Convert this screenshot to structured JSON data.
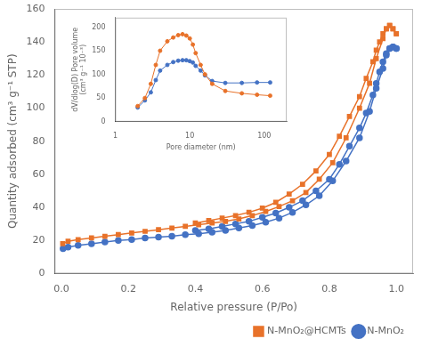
{
  "chart_data": [
    {
      "type": "line",
      "xlabel": "Relative pressure (P/Po)",
      "ylabel": "Quantity adsorbed (cm³ g⁻¹ STP)",
      "xlim": [
        -0.02,
        1.05
      ],
      "ylim": [
        0,
        160
      ],
      "xticks": [
        {
          "value": 0,
          "label": "0.0"
        },
        0.2,
        0.4,
        0.6,
        0.8,
        {
          "value": 1,
          "label": "1.0"
        }
      ],
      "yticks": [
        0,
        20,
        40,
        60,
        80,
        100,
        120,
        140,
        160
      ],
      "grid": false,
      "legend": "lower right",
      "series": [
        {
          "name": "N-MnO₂@HCMTs",
          "color": "#E8722A",
          "marker": "square",
          "x": [
            0.004,
            0.02,
            0.05,
            0.09,
            0.13,
            0.17,
            0.21,
            0.25,
            0.29,
            0.33,
            0.37,
            0.41,
            0.45,
            0.49,
            0.53,
            0.57,
            0.61,
            0.65,
            0.69,
            0.73,
            0.77,
            0.81,
            0.85,
            0.89,
            0.92,
            0.94,
            0.96,
            0.97,
            0.98,
            0.99,
            1.0
          ],
          "values": [
            18.0,
            19.5,
            20.5,
            21.5,
            22.5,
            23.5,
            24.5,
            25.5,
            26.5,
            27.5,
            28.5,
            29.5,
            30.5,
            31.5,
            33.0,
            35.0,
            37.5,
            40.5,
            44.0,
            49.0,
            57.0,
            67.0,
            82.0,
            100.0,
            115.0,
            130.0,
            142.0,
            148.0,
            150.0,
            148.0,
            145.0
          ]
        },
        {
          "color": "#E8722A",
          "marker": "square",
          "x": [
            1.0,
            0.99,
            0.98,
            0.97,
            0.96,
            0.95,
            0.94,
            0.93,
            0.91,
            0.89,
            0.86,
            0.83,
            0.8,
            0.76,
            0.72,
            0.68,
            0.64,
            0.6,
            0.56,
            0.52,
            0.48,
            0.44,
            0.4
          ],
          "values": [
            145.0,
            148.0,
            150.0,
            148.0,
            145.0,
            140.0,
            135.0,
            128.0,
            118.0,
            107.0,
            95.0,
            83.0,
            72.0,
            62.0,
            54.0,
            48.0,
            43.0,
            39.5,
            37.0,
            35.0,
            33.5,
            32.0,
            30.5
          ]
        },
        {
          "name": "N-MnO₂",
          "color": "#4472C4",
          "marker": "circle",
          "x": [
            0.005,
            0.02,
            0.05,
            0.09,
            0.13,
            0.17,
            0.21,
            0.25,
            0.29,
            0.33,
            0.37,
            0.41,
            0.45,
            0.49,
            0.53,
            0.57,
            0.61,
            0.65,
            0.69,
            0.73,
            0.77,
            0.81,
            0.85,
            0.89,
            0.92,
            0.94,
            0.96,
            0.97,
            0.98,
            0.99,
            1.0
          ],
          "values": [
            15.0,
            16.0,
            17.0,
            18.0,
            19.0,
            20.0,
            20.5,
            21.5,
            22.0,
            22.5,
            23.5,
            24.0,
            25.0,
            26.0,
            27.5,
            29.0,
            31.0,
            33.5,
            37.0,
            41.5,
            47.0,
            56.0,
            68.0,
            82.0,
            98.0,
            112.0,
            124.0,
            132.0,
            136.0,
            137.0,
            136.0
          ]
        },
        {
          "color": "#4472C4",
          "marker": "circle",
          "x": [
            1.0,
            0.99,
            0.98,
            0.97,
            0.96,
            0.95,
            0.94,
            0.93,
            0.91,
            0.89,
            0.86,
            0.83,
            0.8,
            0.76,
            0.72,
            0.68,
            0.64,
            0.6,
            0.56,
            0.52,
            0.48,
            0.44,
            0.4
          ],
          "values": [
            136.0,
            137.0,
            136.0,
            133.0,
            128.0,
            122.0,
            115.0,
            108.0,
            97.0,
            88.0,
            77.0,
            66.0,
            57.0,
            50.0,
            44.0,
            40.0,
            36.5,
            34.0,
            31.5,
            30.0,
            28.5,
            27.0,
            26.0
          ]
        }
      ]
    },
    {
      "type": "line",
      "log": "x",
      "xlabel": "Pore diameter (nm)",
      "ylabel": [
        "dV/dlog(D) Pore volume",
        "(cm³ g⁻¹ 10⁻³)"
      ],
      "xlim": [
        1,
        200
      ],
      "ylim": [
        0,
        220
      ],
      "xticks": [
        1,
        10,
        100
      ],
      "yticks": [
        0,
        50,
        100,
        150,
        200
      ],
      "grid": false,
      "series": [
        {
          "color": "#E8722A",
          "marker": "circle",
          "x": [
            2.0,
            2.5,
            3.0,
            3.5,
            4.0,
            5.0,
            6.0,
            7.0,
            8.0,
            9.0,
            10.0,
            11.0,
            12.0,
            14.0,
            16.0,
            20.0,
            30.0,
            50.0,
            80.0,
            120.0
          ],
          "values": [
            33.0,
            50.0,
            80.0,
            120.0,
            150.0,
            170.0,
            178.0,
            183.0,
            185.0,
            182.0,
            176.0,
            163.0,
            145.0,
            120.0,
            100.0,
            80.0,
            65.0,
            60.0,
            57.0,
            55.0
          ]
        },
        {
          "color": "#4472C4",
          "marker": "circle",
          "x": [
            2.0,
            2.5,
            3.0,
            3.5,
            4.0,
            5.0,
            6.0,
            7.0,
            8.0,
            9.0,
            10.0,
            11.0,
            12.0,
            14.0,
            16.0,
            20.0,
            30.0,
            50.0,
            80.0,
            120.0
          ],
          "values": [
            30.0,
            45.0,
            62.0,
            88.0,
            108.0,
            120.0,
            126.0,
            129.0,
            130.0,
            130.0,
            128.0,
            125.0,
            118.0,
            108.0,
            98.0,
            86.0,
            82.0,
            82.0,
            83.0,
            83.0
          ]
        }
      ]
    }
  ]
}
